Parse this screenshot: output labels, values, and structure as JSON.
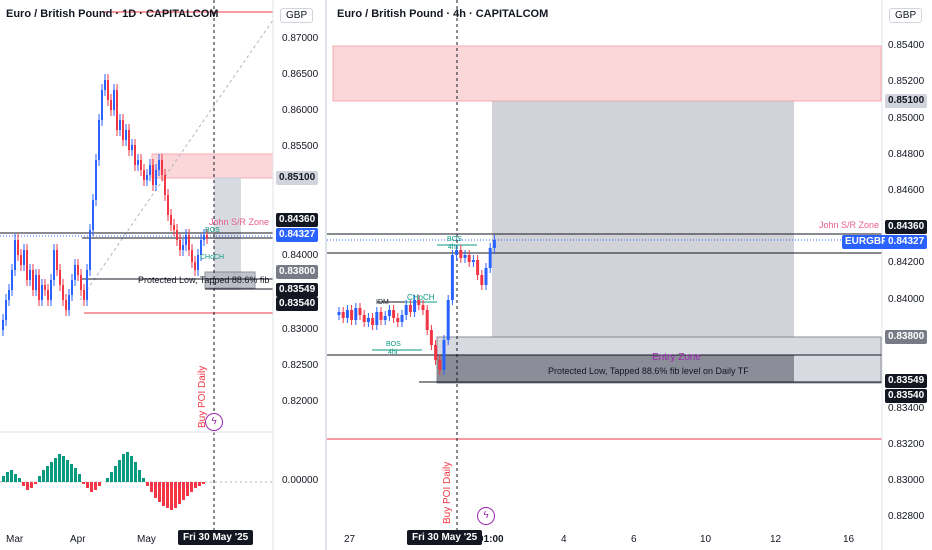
{
  "left_pane": {
    "title": "Euro / British Pound · 1D · CAPITALCOM",
    "currency": "GBP",
    "y_axis_ticks": [
      "0.87000",
      "0.86500",
      "0.86000",
      "0.85500",
      "0.85000",
      "0.84000",
      "0.83500",
      "0.83000",
      "0.82500",
      "0.82000"
    ],
    "price_labels": {
      "upper_zone": "0.85100",
      "sr_level": "0.84360",
      "current": "0.84327",
      "entry_top": "0.83800",
      "low_a": "0.83549",
      "low_b": "0.83540"
    },
    "oscillator_tick": "0.00000",
    "x_axis_ticks": [
      "Mar",
      "Apr",
      "May"
    ],
    "crosshair_date": "Fri 30 May '25",
    "annotations": {
      "sr_zone": "John S/R Zone",
      "protected_low": "Protected Low, Tapped 88.6% fib",
      "poi": "Buy POI Daily",
      "bos": "BOS",
      "choch": "CHoCH"
    }
  },
  "right_pane": {
    "title": "Euro / British Pound · 4h · CAPITALCOM",
    "currency": "GBP",
    "y_axis_ticks": [
      "0.85400",
      "0.85200",
      "0.85000",
      "0.84800",
      "0.84600",
      "0.84200",
      "0.84000",
      "0.83400",
      "0.83200",
      "0.83000",
      "0.82800"
    ],
    "price_labels": {
      "upper_zone": "0.85100",
      "sr_level": "0.84360",
      "symbol": "EURGBP",
      "current": "0.84327",
      "entry_top": "0.83800",
      "low_a": "0.83549",
      "low_b": "0.83540"
    },
    "x_axis_ticks": [
      "27",
      "4",
      "6",
      "10",
      "12",
      "16"
    ],
    "crosshair_date": "Fri 30 May '25",
    "crosshair_time": "01:00",
    "annotations": {
      "sr_zone": "John S/R Zone",
      "entry_zone": "Entry Zone",
      "protected_low": "Protected Low, Tapped 88.6% fib level on Daily TF",
      "poi": "Buy POI Daily",
      "idm": "IDM",
      "choch": "CHoCH",
      "bos_lower": "BOS",
      "bos_lower_tf": "4hr",
      "bos_upper": "BOS",
      "bos_upper_tf": "4hr"
    }
  },
  "colors": {
    "bull": "#2962ff",
    "bear": "#f23645",
    "osc_pos": "#089981",
    "osc_neg": "#f23645",
    "supply_zone": "#fbd7da",
    "zone_grey": "#b2b5be",
    "annotation_pink": "#e85d8a",
    "annotation_green": "#089981",
    "entry_label": "#9c27b0"
  },
  "icons": [
    "lightning-icon"
  ]
}
